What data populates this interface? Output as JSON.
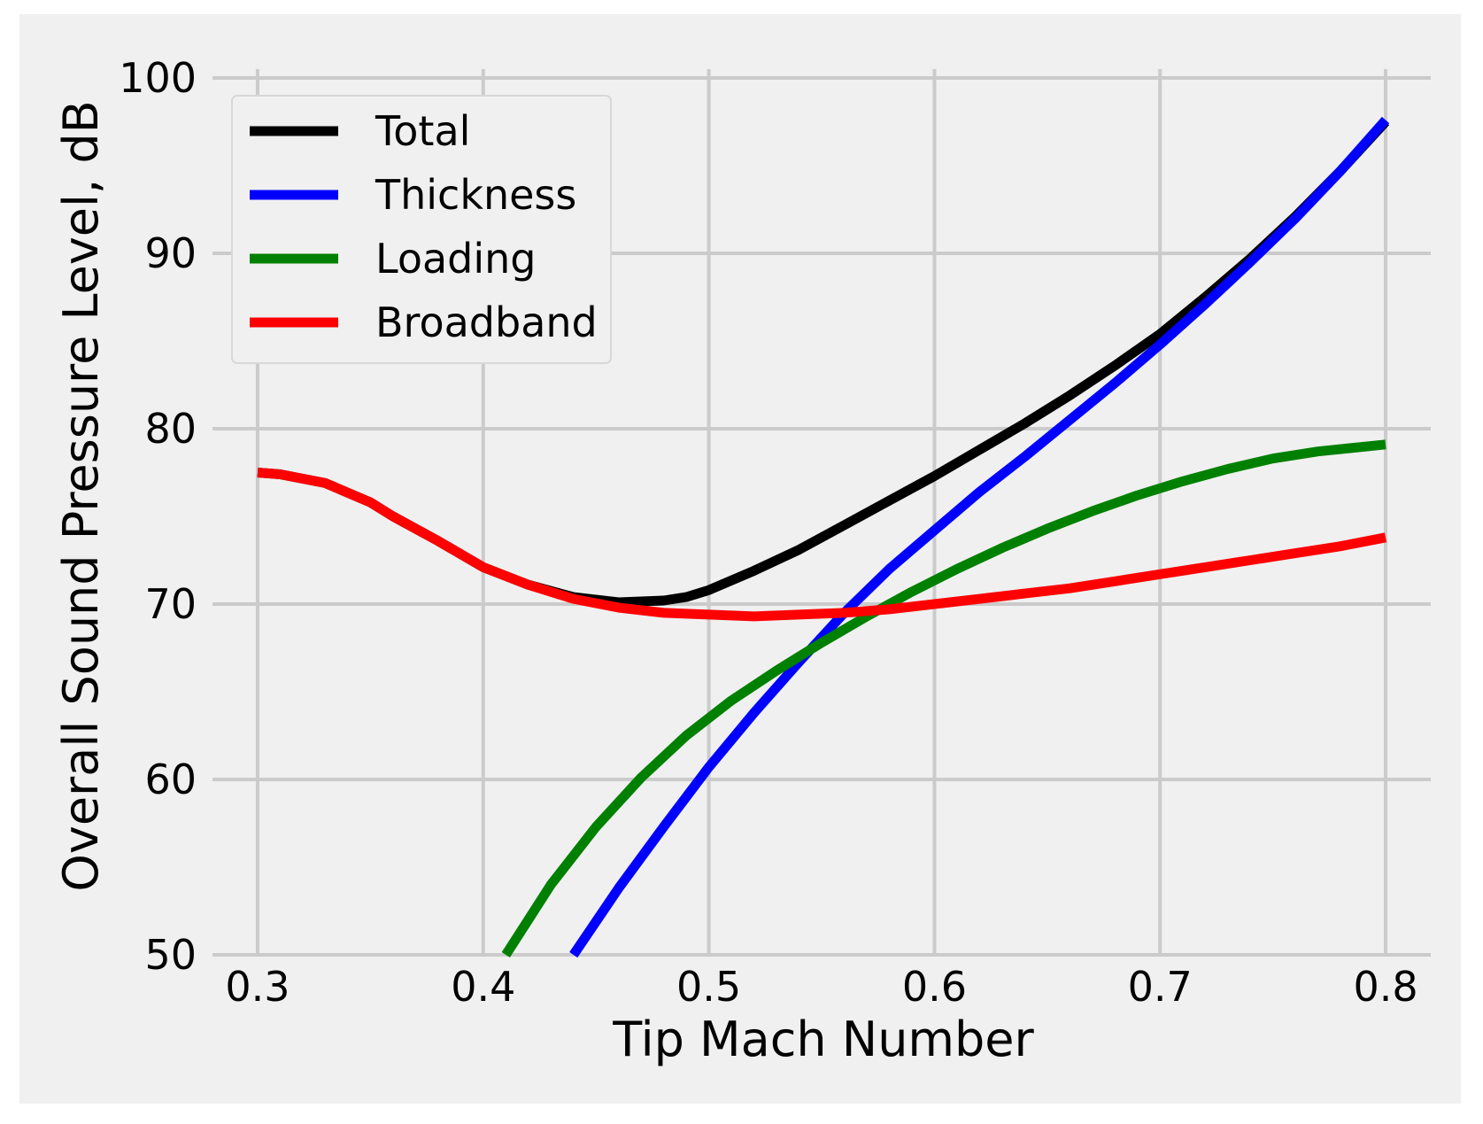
{
  "chart_data": {
    "type": "line",
    "title": "",
    "xlabel": "Tip Mach Number",
    "ylabel": "Overall Sound Pressure Level, dB",
    "xlim": [
      0.28,
      0.82
    ],
    "ylim": [
      50,
      100
    ],
    "xticks": [
      0.3,
      0.4,
      0.5,
      0.6,
      0.7,
      0.8
    ],
    "xtick_labels": [
      "0.3",
      "0.4",
      "0.5",
      "0.6",
      "0.7",
      "0.8"
    ],
    "yticks": [
      50,
      60,
      70,
      80,
      90,
      100
    ],
    "ytick_labels": [
      "50",
      "60",
      "70",
      "80",
      "90",
      "100"
    ],
    "grid": true,
    "background": "#f0f0f0",
    "grid_color": "#cbcbcb",
    "legend_position": "top-left",
    "series": [
      {
        "name": "Total",
        "color": "#000000",
        "x": [
          0.3,
          0.31,
          0.33,
          0.35,
          0.36,
          0.38,
          0.4,
          0.42,
          0.44,
          0.46,
          0.48,
          0.49,
          0.5,
          0.52,
          0.54,
          0.56,
          0.58,
          0.6,
          0.62,
          0.64,
          0.66,
          0.68,
          0.7,
          0.72,
          0.74,
          0.76,
          0.78,
          0.8
        ],
        "y": [
          77.5,
          77.4,
          76.9,
          75.8,
          75.0,
          73.6,
          72.1,
          71.1,
          70.4,
          70.1,
          70.2,
          70.4,
          70.8,
          71.9,
          73.1,
          74.5,
          75.9,
          77.3,
          78.8,
          80.3,
          81.9,
          83.6,
          85.4,
          87.5,
          89.7,
          92.1,
          94.7,
          97.5
        ]
      },
      {
        "name": "Thickness",
        "color": "#0000ff",
        "x": [
          0.44,
          0.46,
          0.48,
          0.5,
          0.52,
          0.54,
          0.56,
          0.58,
          0.6,
          0.62,
          0.64,
          0.66,
          0.68,
          0.7,
          0.72,
          0.74,
          0.76,
          0.78,
          0.8
        ],
        "y": [
          50.0,
          53.8,
          57.3,
          60.7,
          63.8,
          66.7,
          69.5,
          72.0,
          74.2,
          76.4,
          78.4,
          80.5,
          82.6,
          84.8,
          87.1,
          89.5,
          92.0,
          94.7,
          97.6
        ]
      },
      {
        "name": "Loading",
        "color": "#008000",
        "x": [
          0.41,
          0.43,
          0.45,
          0.47,
          0.49,
          0.51,
          0.53,
          0.55,
          0.57,
          0.59,
          0.61,
          0.63,
          0.65,
          0.67,
          0.69,
          0.71,
          0.73,
          0.75,
          0.77,
          0.8
        ],
        "y": [
          50.0,
          54.0,
          57.3,
          60.1,
          62.5,
          64.5,
          66.2,
          67.8,
          69.3,
          70.7,
          72.0,
          73.2,
          74.3,
          75.3,
          76.2,
          77.0,
          77.7,
          78.3,
          78.7,
          79.1
        ]
      },
      {
        "name": "Broadband",
        "color": "#ff0000",
        "x": [
          0.3,
          0.31,
          0.33,
          0.35,
          0.36,
          0.38,
          0.4,
          0.42,
          0.44,
          0.46,
          0.48,
          0.5,
          0.52,
          0.54,
          0.56,
          0.58,
          0.6,
          0.62,
          0.64,
          0.66,
          0.68,
          0.7,
          0.72,
          0.74,
          0.76,
          0.78,
          0.8
        ],
        "y": [
          77.5,
          77.4,
          76.9,
          75.8,
          75.0,
          73.6,
          72.1,
          71.1,
          70.3,
          69.8,
          69.5,
          69.4,
          69.3,
          69.4,
          69.5,
          69.7,
          70.0,
          70.3,
          70.6,
          70.9,
          71.3,
          71.7,
          72.1,
          72.5,
          72.9,
          73.3,
          73.8
        ]
      }
    ]
  }
}
